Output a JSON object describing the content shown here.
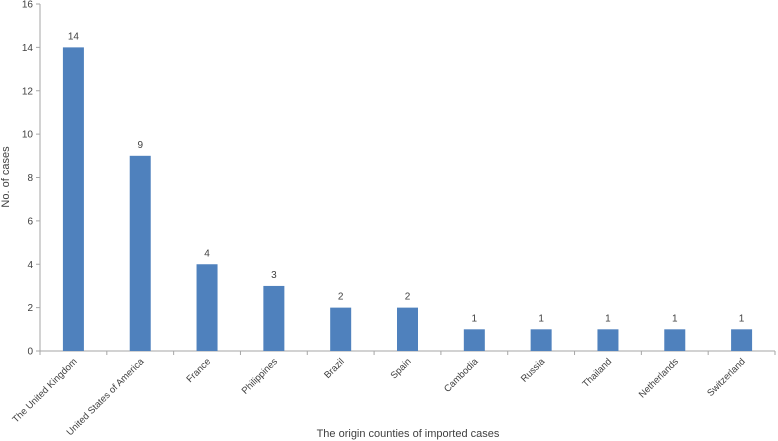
{
  "chart_data": {
    "type": "bar",
    "categories": [
      "The United Kingdom",
      "United States of America",
      "France",
      "Philippines",
      "Brazil",
      "Spain",
      "Cambodia",
      "Russia",
      "Thailand",
      "Netherlands",
      "Switzerland"
    ],
    "values": [
      14,
      9,
      4,
      3,
      2,
      2,
      1,
      1,
      1,
      1,
      1
    ],
    "data_labels": [
      "14",
      "9",
      "4",
      "3",
      "2",
      "2",
      "1",
      "1",
      "1",
      "1",
      "1"
    ],
    "xlabel": "The origin counties of imported cases",
    "ylabel": "No. of cases",
    "ylim": [
      0,
      16
    ],
    "yticks": [
      "0",
      "2",
      "4",
      "6",
      "8",
      "10",
      "12",
      "14",
      "16"
    ],
    "grid": false,
    "bar_color": "#4F81BD",
    "axis_color": "#A6A6A6"
  }
}
